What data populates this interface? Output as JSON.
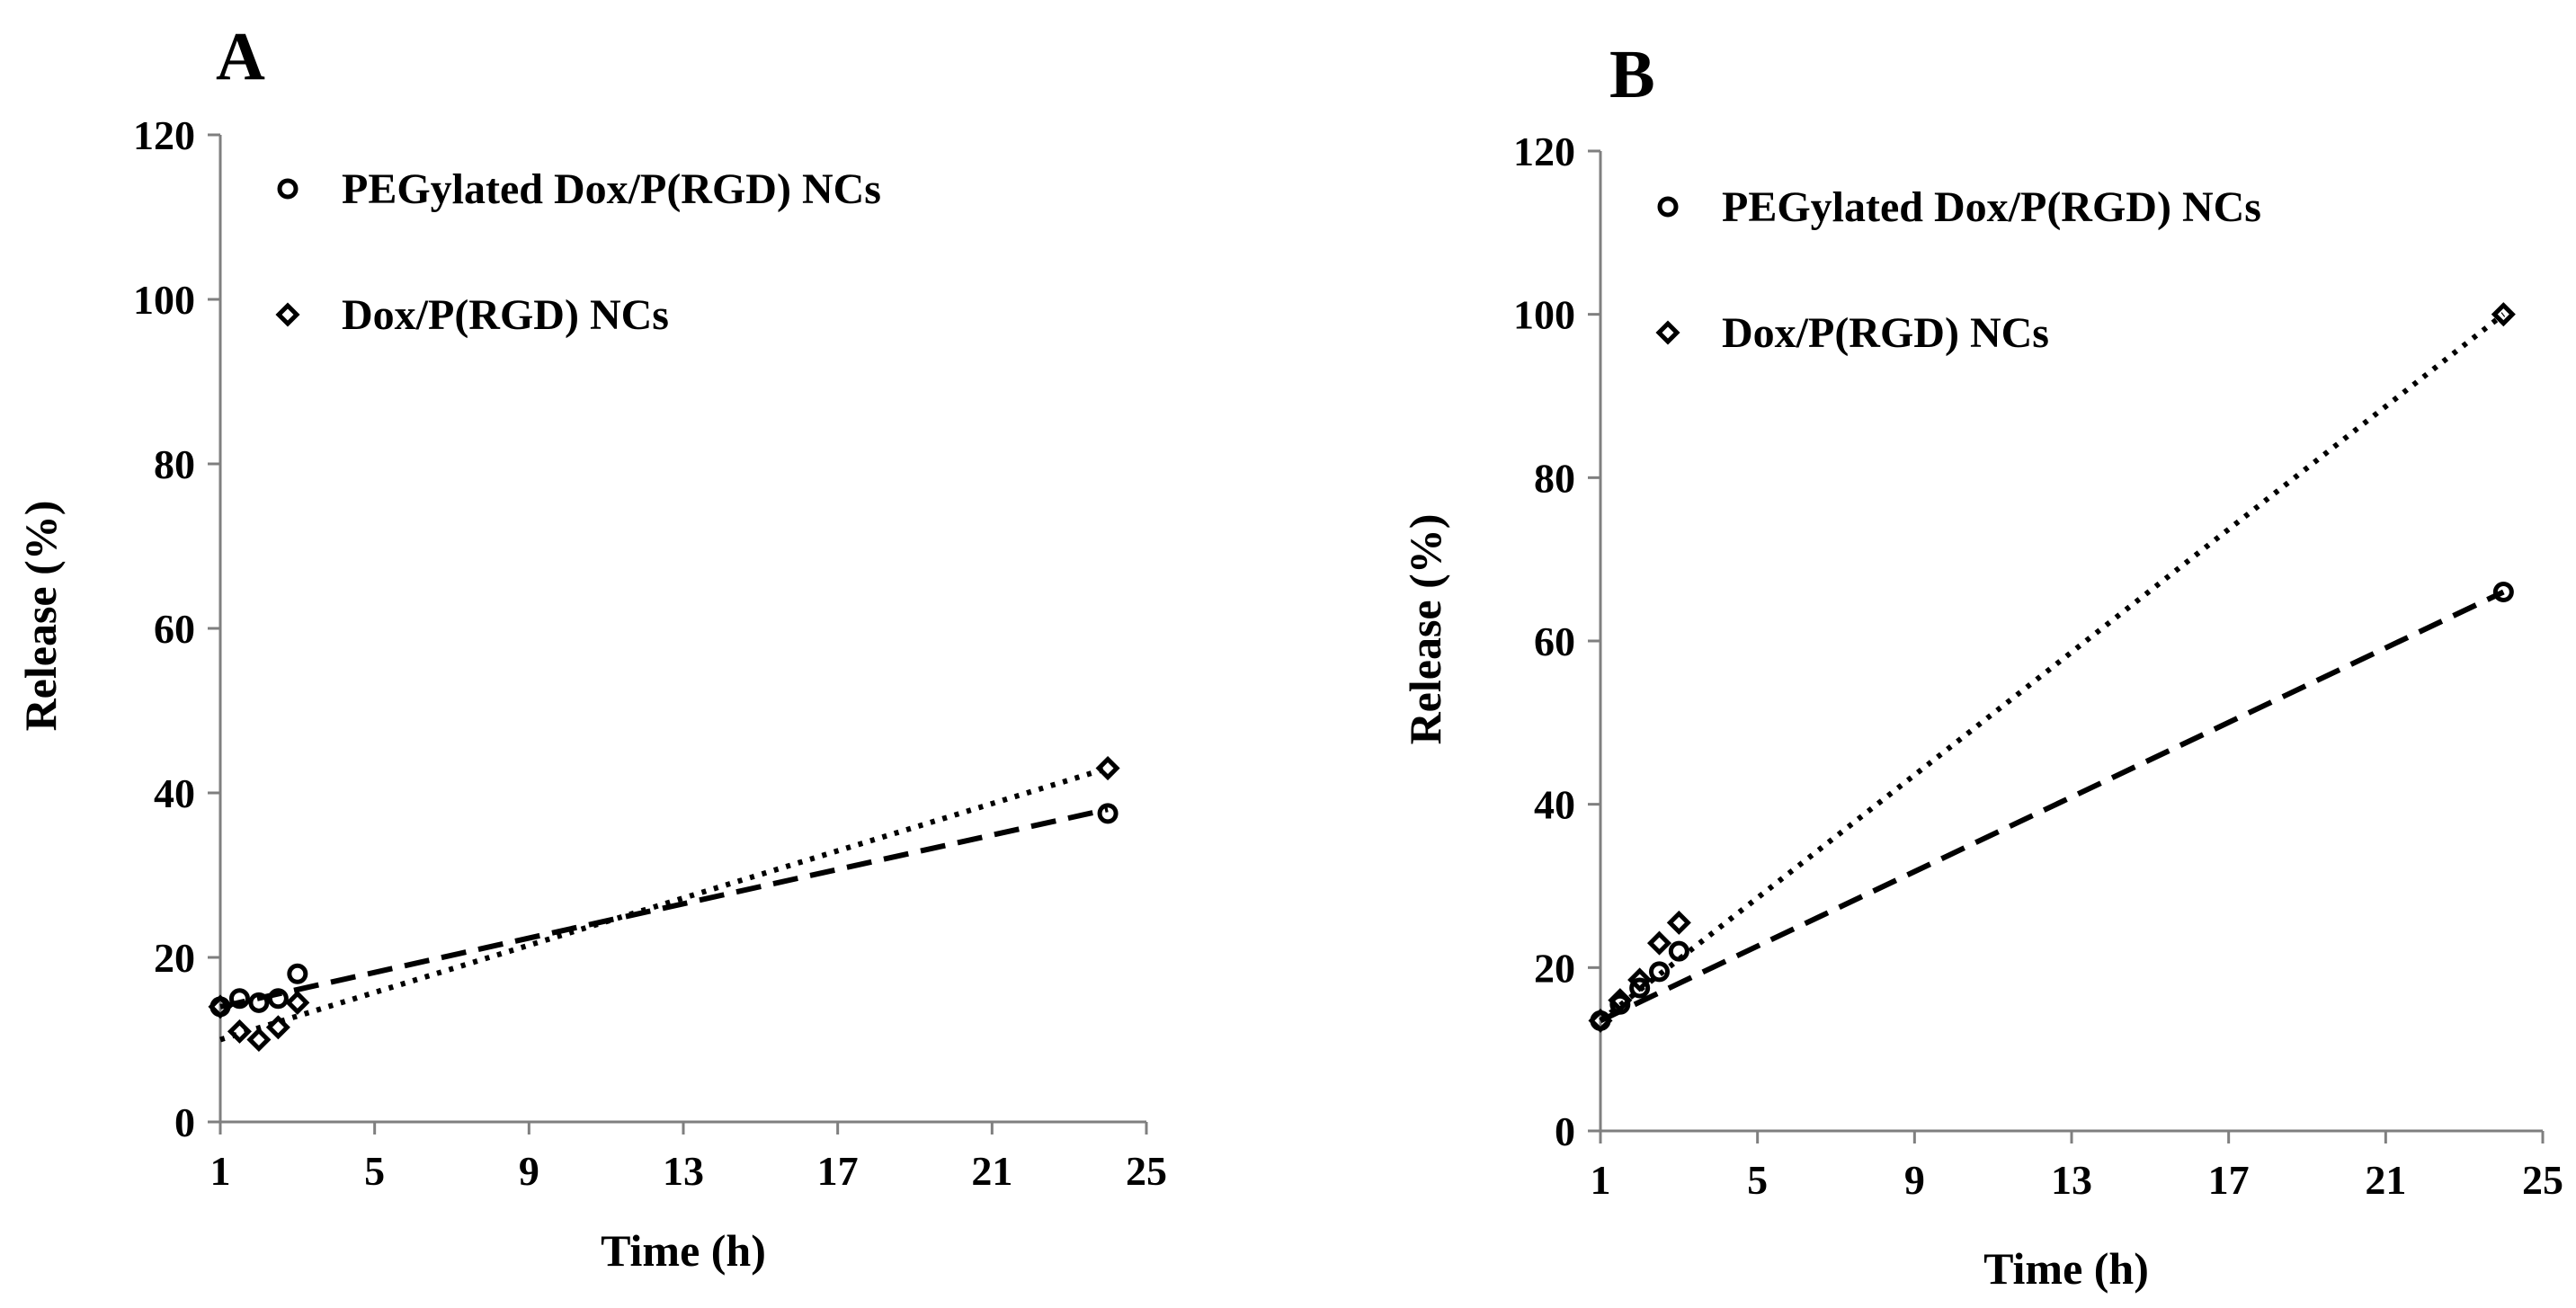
{
  "chart_data": [
    {
      "panel": "A",
      "type": "scatter",
      "xlabel": "Time (h)",
      "ylabel": "Release (%)",
      "xlim": [
        1,
        25
      ],
      "ylim": [
        0,
        120
      ],
      "xticks": [
        1,
        5,
        9,
        13,
        17,
        21,
        25
      ],
      "yticks": [
        0,
        20,
        40,
        60,
        80,
        100,
        120
      ],
      "series": [
        {
          "name": "PEGylated Dox/P(RGD) NCs",
          "marker": "circle",
          "trendline": "dashed",
          "x": [
            1,
            1.5,
            2,
            2.5,
            3,
            24
          ],
          "y": [
            14,
            15,
            14.5,
            15,
            18,
            37.5
          ],
          "trend": [
            [
              1,
              14
            ],
            [
              24,
              38
            ]
          ]
        },
        {
          "name": "Dox/P(RGD) NCs",
          "marker": "diamond",
          "trendline": "dotted",
          "x": [
            1,
            1.5,
            2,
            2.5,
            3,
            24
          ],
          "y": [
            14,
            11,
            10,
            11.5,
            14.5,
            43
          ],
          "trend": [
            [
              1,
              10
            ],
            [
              24,
              43
            ]
          ]
        }
      ]
    },
    {
      "panel": "B",
      "type": "scatter",
      "xlabel": "Time (h)",
      "ylabel": "Release (%)",
      "xlim": [
        1,
        25
      ],
      "ylim": [
        0,
        120
      ],
      "xticks": [
        1,
        5,
        9,
        13,
        17,
        21,
        25
      ],
      "yticks": [
        0,
        20,
        40,
        60,
        80,
        100,
        120
      ],
      "series": [
        {
          "name": "PEGylated Dox/P(RGD) NCs",
          "marker": "circle",
          "trendline": "dashed",
          "x": [
            1,
            1.5,
            2,
            2.5,
            3,
            24
          ],
          "y": [
            13.5,
            15.5,
            17.5,
            19.5,
            22,
            66
          ],
          "trend": [
            [
              1,
              13.5
            ],
            [
              24,
              66
            ]
          ]
        },
        {
          "name": "Dox/P(RGD) NCs",
          "marker": "diamond",
          "trendline": "dotted",
          "x": [
            1,
            1.5,
            2,
            2.5,
            3,
            24
          ],
          "y": [
            13.5,
            16,
            18.5,
            23,
            25.5,
            100
          ],
          "trend": [
            [
              1,
              13.5
            ],
            [
              24,
              100
            ]
          ]
        }
      ]
    }
  ]
}
